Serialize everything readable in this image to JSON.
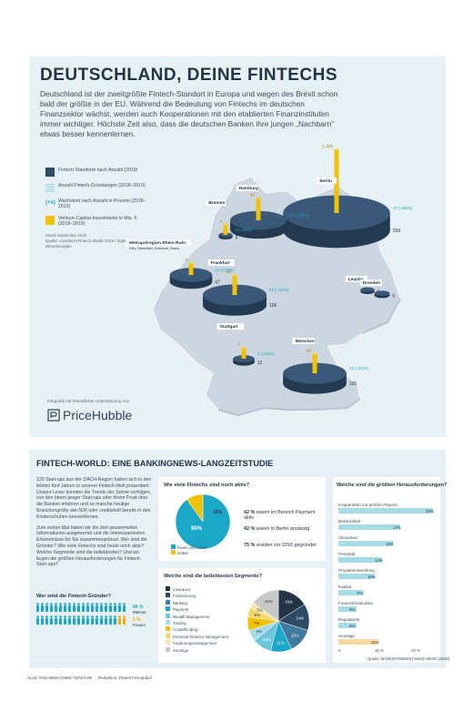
{
  "header": {
    "title": "DEUTSCHLAND, DEINE FINTECHS",
    "intro": "Deutschland ist der zweitgrößte Fintech-Standort in Europa und wegen des Brexit schon bald der größte in der EU. Während die Bedeutung von Fintechs im deutschen Finanzsektor wächst, werden auch Kooperationen mit den etablierten Finanzinstituten immer wichtiger. Höchste Zeit also, dass die deutschen Banken ihre jungen „Nachbarn“ etwas besser kennenlernen."
  },
  "legend": {
    "items": [
      {
        "label": "Fintech-Standorte nach Anzahl (2019)"
      },
      {
        "label": "Anzahl Fintech-Gründungen (2018–2019)"
      },
      {
        "label": "Wachstum nach Anzahl in Prozent (2018–2019)"
      },
      {
        "label": "Venture-Capital-Investments in Mio. € (2018–2019)"
      }
    ],
    "swatches": [
      "#2f4a66",
      "#9ed7e5",
      "#1aa7c8",
      "#f2c200"
    ],
    "grow_symbol": "(+x)",
    "source": "Stand September 2019\nQuelle: comdirect-Fintech-Studie 2019 / Eigene Berechnungen"
  },
  "map": {
    "cities": [
      {
        "name": "Berlin",
        "count": 299,
        "growth": "47 (+26%)",
        "venture": "1.268"
      },
      {
        "name": "Hamburg",
        "count": 83,
        "growth": "17 (+26%)",
        "venture": "86"
      },
      {
        "name": "Bremen",
        "count": 5,
        "growth": "1 (+25%)",
        "venture": "4"
      },
      {
        "name": "Metropolregion Rhein-Ruhr",
        "subtitle": "Köln, Düsseldorf, Dortmund, Essen",
        "count": 47,
        "growth": "10 (+28%)",
        "venture": "9"
      },
      {
        "name": "Frankfurt",
        "count": 106,
        "growth": "23 (+28%)",
        "venture": "60"
      },
      {
        "name": "Stuttgart",
        "count": 12,
        "growth": "3 (+33%)",
        "venture": "6"
      },
      {
        "name": "München",
        "count": 105,
        "growth": "21 (+11%)",
        "venture": "56"
      },
      {
        "name": "Leipzig",
        "count": 5,
        "growth": "",
        "venture": ""
      },
      {
        "name": "Dresden",
        "count": 6,
        "growth": "",
        "venture": ""
      }
    ]
  },
  "sponsor": {
    "note": "Infografik mit freundlicher Unterstützung von",
    "logo_text": "PriceHubble"
  },
  "section2": {
    "title": "FINTECH-WORLD: EINE BANKINGNEWS-LANGZEITSTUDIE",
    "text1": "120 Start-ups aus der DACH-Region haben sich in den letzten fünf Jahren in unserer Fintech-Welt präsentiert. Unsere Leser konnten die Trends der Szene verfolgen, von den Ideen junger Start-ups oder ihrem Frust über die Banken erfahren und so manche heutige Branchengröße wie N26 oder creditshelf bereits in den Kinderschuhen kennenlernen.",
    "text2": "Zum ersten Mal haben wir die dort gesammelten Informationen ausgewertet und die interessantesten Erkenntnisse für Sie zusammengefasst. Wer sind die Gründer? Wie viele Fintechs sind heute noch aktiv? Welche Segmente sind die beliebtesten? Und wo liegen die größten Herausforderungen für Fintech-Start-ups?"
  },
  "founders": {
    "title": "Wer sind die Fintech-Gründer?",
    "male_pct": "95 %",
    "male_label": "Männer",
    "female_pct": "5 %",
    "female_label": "Frauen",
    "colors": {
      "male": "#1aa7c8",
      "female": "#f2a900"
    }
  },
  "active": {
    "title": "Wie viele Fintechs sind noch aktiv?",
    "legend_active": "heute noch aktiv",
    "legend_inactive": "inaktiv",
    "facts": [
      {
        "value": "42 %",
        "text": "waren im Bereich Payment aktiv"
      },
      {
        "value": "42 %",
        "text": "waren in Berlin ansässig"
      },
      {
        "value": "75 %",
        "text": "wurden vor 2016 gegründet"
      }
    ]
  },
  "segments": {
    "title": "Welche sind die beliebtesten Segmente?"
  },
  "challenges": {
    "title": "Welche sind die größten Herausforderungen?",
    "source": "Quelle: BANKINGNEWS Fintech-World (2020)"
  },
  "footer": {
    "left": "ALLE ANGABEN OHNE GEWÄHR",
    "editor": "Redaktion: Daniel Fernandez"
  },
  "chart_data": [
    {
      "type": "pie",
      "title": "Wie viele Fintechs sind noch aktiv?",
      "categories": [
        "heute noch aktiv",
        "inaktiv"
      ],
      "values": [
        90,
        10
      ],
      "colors": [
        "#1aa7c8",
        "#f2c200"
      ]
    },
    {
      "type": "pie",
      "title": "Welche sind die beliebtesten Segmente?",
      "categories": [
        "Insurance",
        "Finanzierung",
        "Banking",
        "Payment",
        "Wealth Management",
        "Trading",
        "Crowdfunding",
        "Personal Finance Management",
        "Forderungsmanagement",
        "Sonstige"
      ],
      "values": [
        16,
        14,
        13,
        11,
        10,
        6,
        7,
        5,
        3,
        15
      ],
      "colors": [
        "#243447",
        "#2f4a66",
        "#3e7b9e",
        "#1aa7c8",
        "#6cc5d9",
        "#a7dbe6",
        "#f2c200",
        "#f5d665",
        "#f7e6a9",
        "#c8c8c8"
      ]
    },
    {
      "type": "bar",
      "title": "Welche sind die größten Herausforderungen?",
      "categories": [
        "Kooperation mit großen Playern",
        "Bekanntheit",
        "Akzeptanz",
        "Personal",
        "Produktentwicklung",
        "Kapital",
        "Finanzinfrastruktur",
        "Regulatorik",
        "Sonstige"
      ],
      "values": [
        26,
        17,
        15,
        12,
        10,
        7,
        5,
        5,
        11
      ],
      "xlim": [
        0,
        25
      ],
      "xticks": [
        "0",
        "10 %",
        "20 %"
      ]
    }
  ]
}
